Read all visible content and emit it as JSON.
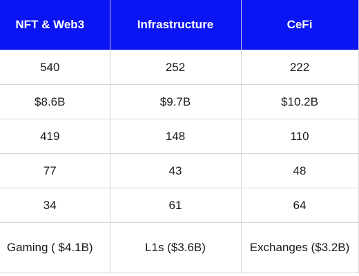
{
  "table": {
    "headers": [
      "NFT & Web3",
      "Infrastructure",
      "CeFi"
    ],
    "rows": [
      [
        "540",
        "252",
        "222"
      ],
      [
        "$8.6B",
        "$9.7B",
        "$10.2B"
      ],
      [
        "419",
        "148",
        "110"
      ],
      [
        "77",
        "43",
        "48"
      ],
      [
        "34",
        "61",
        "64"
      ],
      [
        "Gaming ( $4.1B)",
        "L1s ($3.6B)",
        "Exchanges ($3.2B)"
      ]
    ]
  },
  "colors": {
    "header_background": "#0b14f2",
    "header_text": "#ffffff",
    "grid_line": "#d6d6d6"
  }
}
